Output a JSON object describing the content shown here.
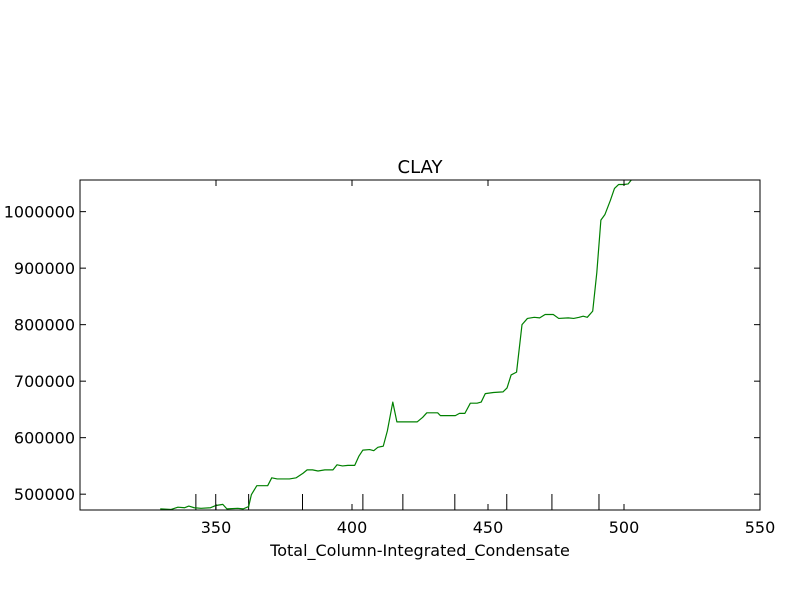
{
  "chart_data": {
    "type": "line",
    "title": "CLAY",
    "xlabel": "Total_Column-Integrated_Condensate",
    "ylabel": "",
    "xlim": [
      300,
      550
    ],
    "ylim": [
      472000,
      1056000
    ],
    "grid": false,
    "x_ticks": [
      {
        "value": 350,
        "label": "350"
      },
      {
        "value": 400,
        "label": "400"
      },
      {
        "value": 450,
        "label": "450"
      },
      {
        "value": 500,
        "label": "500"
      },
      {
        "value": 550,
        "label": "550"
      }
    ],
    "y_ticks": [
      {
        "value": 500000,
        "label": "500000"
      },
      {
        "value": 600000,
        "label": "600000"
      },
      {
        "value": 700000,
        "label": "700000"
      },
      {
        "value": 800000,
        "label": "800000"
      },
      {
        "value": 900000,
        "label": "900000"
      },
      {
        "value": 1000000,
        "label": "1000000"
      }
    ],
    "bottom_marks_x": [
      342.6,
      349.9,
      362.0,
      381.8,
      404.0,
      418.7,
      437.8,
      456.9,
      473.5,
      490.8
    ],
    "series": [
      {
        "color": "#008000",
        "points": [
          [
            329.5,
            474000
          ],
          [
            333.5,
            473000
          ],
          [
            336.0,
            477000
          ],
          [
            338.5,
            476000
          ],
          [
            340.0,
            479000
          ],
          [
            342.0,
            476000
          ],
          [
            344.5,
            475000
          ],
          [
            348.0,
            476000
          ],
          [
            350.0,
            480000
          ],
          [
            352.5,
            482000
          ],
          [
            354.0,
            474000
          ],
          [
            358.0,
            475000
          ],
          [
            360.0,
            474000
          ],
          [
            362.0,
            478000
          ],
          [
            363.0,
            499000
          ],
          [
            365.0,
            515000
          ],
          [
            369.0,
            515000
          ],
          [
            370.5,
            529000
          ],
          [
            372.5,
            527000
          ],
          [
            377.0,
            527000
          ],
          [
            379.5,
            529000
          ],
          [
            382.0,
            537000
          ],
          [
            383.5,
            543000
          ],
          [
            385.5,
            543000
          ],
          [
            387.5,
            541000
          ],
          [
            390.0,
            543000
          ],
          [
            393.0,
            543000
          ],
          [
            394.5,
            552000
          ],
          [
            396.5,
            550000
          ],
          [
            398.5,
            551000
          ],
          [
            401.0,
            551000
          ],
          [
            402.5,
            567000
          ],
          [
            404.0,
            578000
          ],
          [
            406.5,
            579000
          ],
          [
            408.0,
            577000
          ],
          [
            409.5,
            583000
          ],
          [
            411.5,
            585000
          ],
          [
            413.0,
            612000
          ],
          [
            415.0,
            663000
          ],
          [
            416.5,
            628000
          ],
          [
            420.0,
            628000
          ],
          [
            424.0,
            628000
          ],
          [
            426.0,
            636000
          ],
          [
            427.5,
            644000
          ],
          [
            431.5,
            644000
          ],
          [
            432.5,
            639000
          ],
          [
            438.0,
            639000
          ],
          [
            439.5,
            643000
          ],
          [
            441.5,
            643000
          ],
          [
            443.5,
            661000
          ],
          [
            446.0,
            661000
          ],
          [
            447.5,
            663000
          ],
          [
            449.0,
            678000
          ],
          [
            452.0,
            680000
          ],
          [
            455.5,
            681000
          ],
          [
            457.0,
            688000
          ],
          [
            458.5,
            711000
          ],
          [
            460.5,
            716000
          ],
          [
            462.5,
            800000
          ],
          [
            464.5,
            811000
          ],
          [
            467.0,
            813000
          ],
          [
            469.0,
            812000
          ],
          [
            471.0,
            818000
          ],
          [
            474.0,
            818000
          ],
          [
            476.0,
            811000
          ],
          [
            479.5,
            812000
          ],
          [
            481.5,
            811000
          ],
          [
            483.5,
            813000
          ],
          [
            485.0,
            815000
          ],
          [
            486.5,
            813000
          ],
          [
            488.5,
            824000
          ],
          [
            490.0,
            892000
          ],
          [
            491.5,
            985000
          ],
          [
            493.0,
            995000
          ],
          [
            495.0,
            1020000
          ],
          [
            496.5,
            1041000
          ],
          [
            498.0,
            1048000
          ],
          [
            500.0,
            1048000
          ],
          [
            501.5,
            1049000
          ],
          [
            502.5,
            1055000
          ],
          [
            503.5,
            1059000
          ]
        ]
      }
    ]
  }
}
